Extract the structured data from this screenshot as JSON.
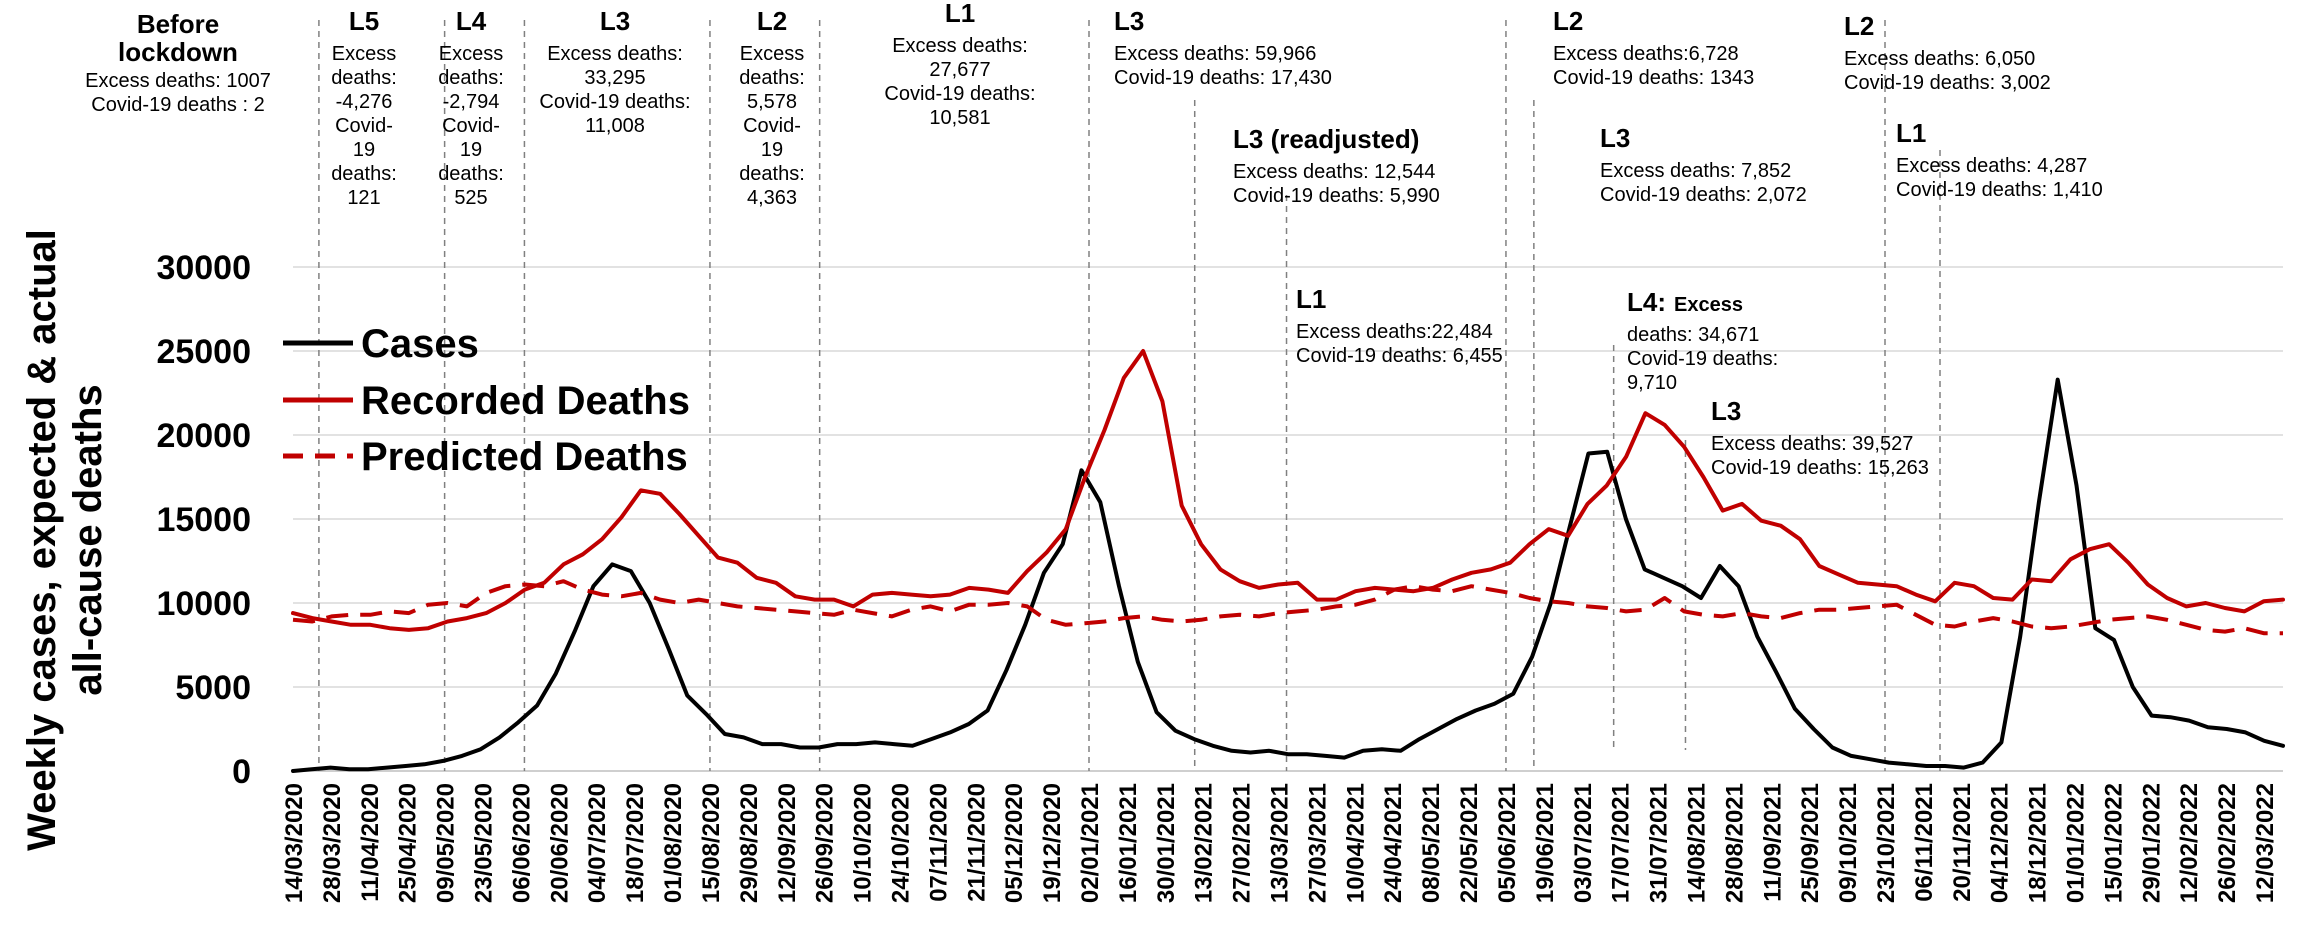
{
  "chart_data": {
    "type": "line",
    "ylabel": "Weekly cases, expected & actual all-cause deaths",
    "ylim": [
      0,
      30000
    ],
    "yticks": [
      "0",
      "5000",
      "10000",
      "15000",
      "20000",
      "25000",
      "30000"
    ],
    "grid": "horizontal",
    "legend_position": "upper-left",
    "x_labels": [
      "14/03/2020",
      "28/03/2020",
      "11/04/2020",
      "25/04/2020",
      "09/05/2020",
      "23/05/2020",
      "06/06/2020",
      "20/06/2020",
      "04/07/2020",
      "18/07/2020",
      "01/08/2020",
      "15/08/2020",
      "29/08/2020",
      "12/09/2020",
      "26/09/2020",
      "10/10/2020",
      "24/10/2020",
      "07/11/2020",
      "21/11/2020",
      "05/12/2020",
      "19/12/2020",
      "02/01/2021",
      "16/01/2021",
      "30/01/2021",
      "13/02/2021",
      "27/02/2021",
      "13/03/2021",
      "27/03/2021",
      "10/04/2021",
      "24/04/2021",
      "08/05/2021",
      "22/05/2021",
      "05/06/2021",
      "19/06/2021",
      "03/07/2021",
      "17/07/2021",
      "31/07/2021",
      "14/08/2021",
      "28/08/2021",
      "11/09/2021",
      "25/09/2021",
      "09/10/2021",
      "23/10/2021",
      "06/11/2021",
      "20/11/2021",
      "04/12/2021",
      "18/12/2021",
      "01/01/2022",
      "15/01/2022",
      "29/01/2022",
      "12/02/2022",
      "26/02/2022",
      "12/03/2022"
    ],
    "series": [
      {
        "name": "Cases",
        "color": "#000000",
        "dash": "solid",
        "values": [
          0,
          100,
          200,
          100,
          100,
          200,
          300,
          400,
          600,
          900,
          1300,
          2000,
          2900,
          3900,
          5800,
          8300,
          11000,
          12300,
          11900,
          10000,
          7300,
          4500,
          3400,
          2200,
          2000,
          1600,
          1600,
          1400,
          1400,
          1600,
          1600,
          1700,
          1600,
          1500,
          1900,
          2300,
          2800,
          3600,
          6000,
          8700,
          11800,
          13500,
          17900,
          16000,
          11000,
          6500,
          3500,
          2400,
          1900,
          1500,
          1200,
          1100,
          1200,
          1000,
          1000,
          900,
          800,
          1200,
          1300,
          1200,
          1900,
          2500,
          3100,
          3600,
          4000,
          4600,
          6800,
          10000,
          14500,
          18900,
          19000,
          15000,
          12000,
          11500,
          11000,
          10300,
          12200,
          11000,
          8000,
          5900,
          3700,
          2500,
          1400,
          900,
          700,
          500,
          400,
          300,
          300,
          200,
          500,
          1700,
          8000,
          16000,
          23300,
          17000,
          8500,
          7800,
          5000,
          3300,
          3200,
          3000,
          2600,
          2500,
          2300,
          1800,
          1500
        ]
      },
      {
        "name": "Recorded Deaths",
        "color": "#c00000",
        "dash": "solid",
        "values": [
          9400,
          9100,
          8900,
          8700,
          8700,
          8500,
          8400,
          8500,
          8900,
          9100,
          9400,
          10000,
          10800,
          11200,
          12300,
          12900,
          13800,
          15100,
          16700,
          16500,
          15300,
          14000,
          12700,
          12400,
          11500,
          11200,
          10400,
          10200,
          10200,
          9800,
          10500,
          10600,
          10500,
          10400,
          10500,
          10900,
          10800,
          10600,
          11900,
          13000,
          14400,
          17500,
          20300,
          23400,
          25000,
          22000,
          15800,
          13500,
          12000,
          11300,
          10900,
          11100,
          11200,
          10200,
          10200,
          10700,
          10900,
          10800,
          10700,
          10900,
          11400,
          11800,
          12000,
          12400,
          13500,
          14400,
          14000,
          15900,
          17000,
          18700,
          21300,
          20600,
          19300,
          17500,
          15500,
          15900,
          14900,
          14600,
          13800,
          12200,
          11700,
          11200,
          11100,
          11000,
          10500,
          10100,
          11200,
          11000,
          10300,
          10200,
          11400,
          11300,
          12600,
          13200,
          13500,
          12400,
          11100,
          10300,
          9800,
          10000,
          9700,
          9500,
          10100,
          10200
        ]
      },
      {
        "name": "Predicted Deaths",
        "color": "#c00000",
        "dash": "dashed",
        "values": [
          9000,
          8900,
          9200,
          9300,
          9300,
          9500,
          9400,
          9900,
          10000,
          9800,
          10600,
          11000,
          11100,
          11000,
          11300,
          10800,
          10500,
          10400,
          10600,
          10200,
          10000,
          10200,
          10000,
          9800,
          9700,
          9600,
          9500,
          9400,
          9300,
          9600,
          9400,
          9200,
          9600,
          9800,
          9500,
          9900,
          9900,
          10000,
          9800,
          9000,
          8700,
          8800,
          8900,
          9100,
          9200,
          9000,
          8900,
          9000,
          9200,
          9300,
          9200,
          9400,
          9500,
          9600,
          9800,
          9900,
          10200,
          10800,
          11000,
          10800,
          10700,
          11000,
          10800,
          10600,
          10300,
          10100,
          10000,
          9800,
          9700,
          9500,
          9600,
          10300,
          9500,
          9300,
          9200,
          9400,
          9200,
          9100,
          9400,
          9600,
          9600,
          9700,
          9800,
          9900,
          9300,
          8700,
          8600,
          8900,
          9100,
          8900,
          8600,
          8500,
          8600,
          8800,
          9000,
          9100,
          9200,
          9000,
          8700,
          8400,
          8300,
          8500,
          8200,
          8200
        ]
      }
    ],
    "phase_dividers_at": [
      "28/03/2020",
      "09/05/2020",
      "06/06/2020",
      "15/08/2020",
      "26/09/2020",
      "02/01/2021",
      "13/02/2021",
      "13/03/2021",
      "05/06/2021",
      "19/06/2021",
      "17/07/2021",
      "14/08/2021",
      "23/10/2021",
      "23/10/2021"
    ],
    "annotations": [
      {
        "title": "Before lockdown",
        "lines": [
          "Excess deaths: 1007",
          "Covid-19 deaths : 2"
        ]
      },
      {
        "title": "L5",
        "lines": [
          "Excess",
          "deaths:",
          "-4,276",
          "Covid-",
          "19",
          "deaths:",
          "121"
        ]
      },
      {
        "title": "L4",
        "lines": [
          "Excess",
          "deaths:",
          "-2,794",
          "Covid-",
          "19",
          "deaths:",
          "525"
        ]
      },
      {
        "title": "L3",
        "lines": [
          "Excess deaths:",
          "33,295",
          "Covid-19 deaths:",
          "11,008"
        ]
      },
      {
        "title": "L2",
        "lines": [
          "Excess",
          "deaths:",
          "5,578",
          "Covid-",
          "19",
          "deaths:",
          "4,363"
        ]
      },
      {
        "title": "L1",
        "lines": [
          "Excess deaths:",
          "27,677",
          "Covid-19 deaths:",
          "10,581"
        ]
      },
      {
        "title": "L3",
        "lines": [
          "Excess deaths: 59,966",
          "Covid-19 deaths: 17,430"
        ]
      },
      {
        "title": "L3 (readjusted)",
        "lines": [
          "Excess deaths: 12,544",
          "Covid-19 deaths: 5,990"
        ]
      },
      {
        "title": "L1",
        "lines": [
          "Excess deaths:22,484",
          "Covid-19 deaths: 6,455"
        ]
      },
      {
        "title": "L2",
        "lines": [
          "Excess deaths:6,728",
          "Covid-19 deaths: 1343"
        ]
      },
      {
        "title": "L3",
        "lines": [
          "Excess deaths: 7,852",
          "Covid-19 deaths: 2,072"
        ]
      },
      {
        "title": "L4:",
        "inline": "Excess",
        "lines": [
          "deaths: 34,671",
          "Covid-19 deaths:",
          "9,710"
        ]
      },
      {
        "title": "L3",
        "lines": [
          "Excess deaths: 39,527",
          "Covid-19 deaths: 15,263"
        ]
      },
      {
        "title": "L2",
        "lines": [
          "Excess deaths: 6,050",
          "Covid-19 deaths: 3,002"
        ]
      },
      {
        "title": "L1",
        "lines": [
          "Excess deaths: 4,287",
          "Covid-19 deaths: 1,410"
        ]
      }
    ]
  }
}
